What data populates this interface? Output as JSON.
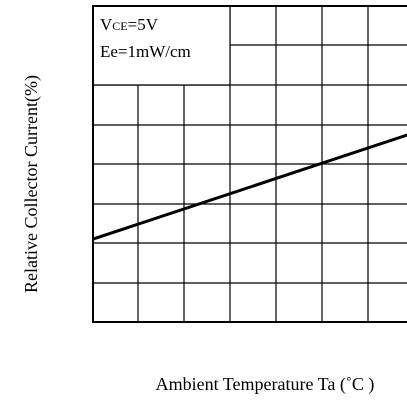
{
  "chart_data": {
    "type": "line",
    "title": "",
    "xlabel": "Ambient Temperature Ta (˚C )",
    "ylabel": "Relative Collector Current(%)",
    "grid": true,
    "tick_labels_visible": false,
    "annotation": {
      "vce_main": "V",
      "vce_sub": "CE",
      "vce_value": "=5V",
      "ee_line": "Ee=1mW/cm"
    },
    "series": [
      {
        "values_normalized": [
          0.2625,
          0.5938
        ]
      }
    ]
  },
  "style": {
    "line_color": "#000000",
    "grid_color": "#000000",
    "background": "#ffffff"
  }
}
